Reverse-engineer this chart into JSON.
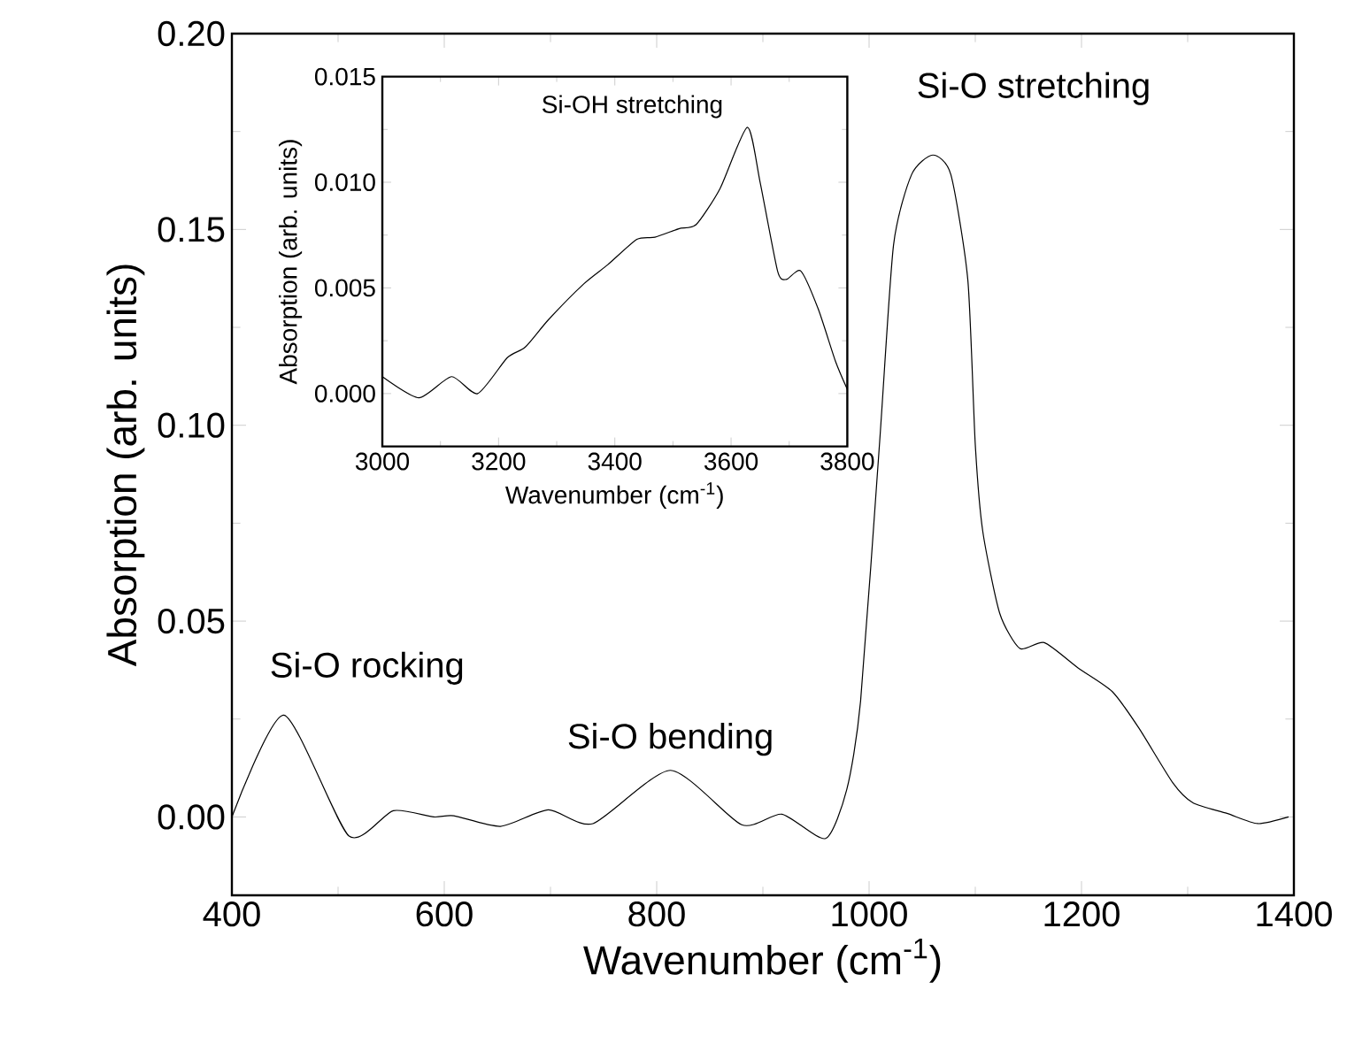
{
  "chart_data": [
    {
      "type": "line",
      "xlabel": "Wavenumber (cm$^{-1}$)",
      "ylabel": "Absorption (arb. units)",
      "x": [
        400,
        449,
        510,
        552,
        590,
        609,
        653,
        698,
        740,
        813,
        880,
        918,
        959,
        979,
        992,
        1010,
        1023,
        1040,
        1060,
        1077,
        1093,
        1100,
        1107,
        1123,
        1142,
        1165,
        1197,
        1229,
        1254,
        1286,
        1305,
        1337,
        1366,
        1395
      ],
      "series": [
        {
          "color": "#000000",
          "values": [
            0.0,
            0.026,
            -0.0048,
            0.0016,
            0.0,
            0.0003,
            -0.0024,
            0.0018,
            -0.0017,
            0.0119,
            -0.002,
            0.0007,
            -0.0055,
            0.007,
            0.0296,
            0.096,
            0.146,
            0.164,
            0.169,
            0.164,
            0.137,
            0.095,
            0.073,
            0.052,
            0.043,
            0.0445,
            0.038,
            0.032,
            0.0227,
            0.0087,
            0.0036,
            0.0009,
            -0.0017,
            0.0
          ]
        }
      ],
      "xlim": [
        400,
        1400
      ],
      "ylim": [
        -0.02,
        0.2
      ],
      "xticks": [
        400,
        600,
        800,
        1000,
        1200,
        1400
      ],
      "yticks": [
        {
          "value": 0,
          "label": "0.00"
        },
        0.05,
        {
          "value": 0.1,
          "label": "0.10"
        },
        0.15,
        {
          "value": 0.2,
          "label": "0.20"
        }
      ],
      "marker": "none",
      "line_style": "solid",
      "annotations": [
        {
          "text": "Si-O rocking",
          "x": 449,
          "y": 0.026
        },
        {
          "text": "Si-O bending",
          "x": 813,
          "y": 0.0119
        },
        {
          "text": "Si-O stretching",
          "x": 1060,
          "y": 0.169
        }
      ]
    },
    {
      "type": "line",
      "xlabel": "Wavenumber (cm$^{-1}$)",
      "ylabel": "Absorption (arb. units)",
      "x": [
        3000,
        3063,
        3119,
        3164,
        3215,
        3246,
        3286,
        3347,
        3388,
        3438,
        3469,
        3510,
        3540,
        3581,
        3628,
        3650,
        3680,
        3695,
        3720,
        3750,
        3780,
        3800
      ],
      "series": [
        {
          "color": "#000000",
          "values": [
            0.0008,
            -0.0002,
            0.0008,
            0.0,
            0.0017,
            0.0022,
            0.0035,
            0.0052,
            0.0061,
            0.0073,
            0.0074,
            0.0078,
            0.008,
            0.0097,
            0.0126,
            0.01,
            0.0058,
            0.0054,
            0.0058,
            0.004,
            0.0015,
            0.0002
          ]
        }
      ],
      "xlim": [
        3000,
        3800
      ],
      "ylim": [
        -0.0025,
        0.015
      ],
      "xticks": [
        3000,
        3200,
        3400,
        3600,
        3800
      ],
      "yticks": [
        {
          "value": 0,
          "label": "0.000"
        },
        0.005,
        {
          "value": 0.01,
          "label": "0.010"
        },
        0.015
      ],
      "marker": "none",
      "line_style": "solid",
      "annotations": [
        {
          "text": "Si-OH stretching",
          "x": 3628,
          "y": 0.0126
        }
      ]
    }
  ]
}
